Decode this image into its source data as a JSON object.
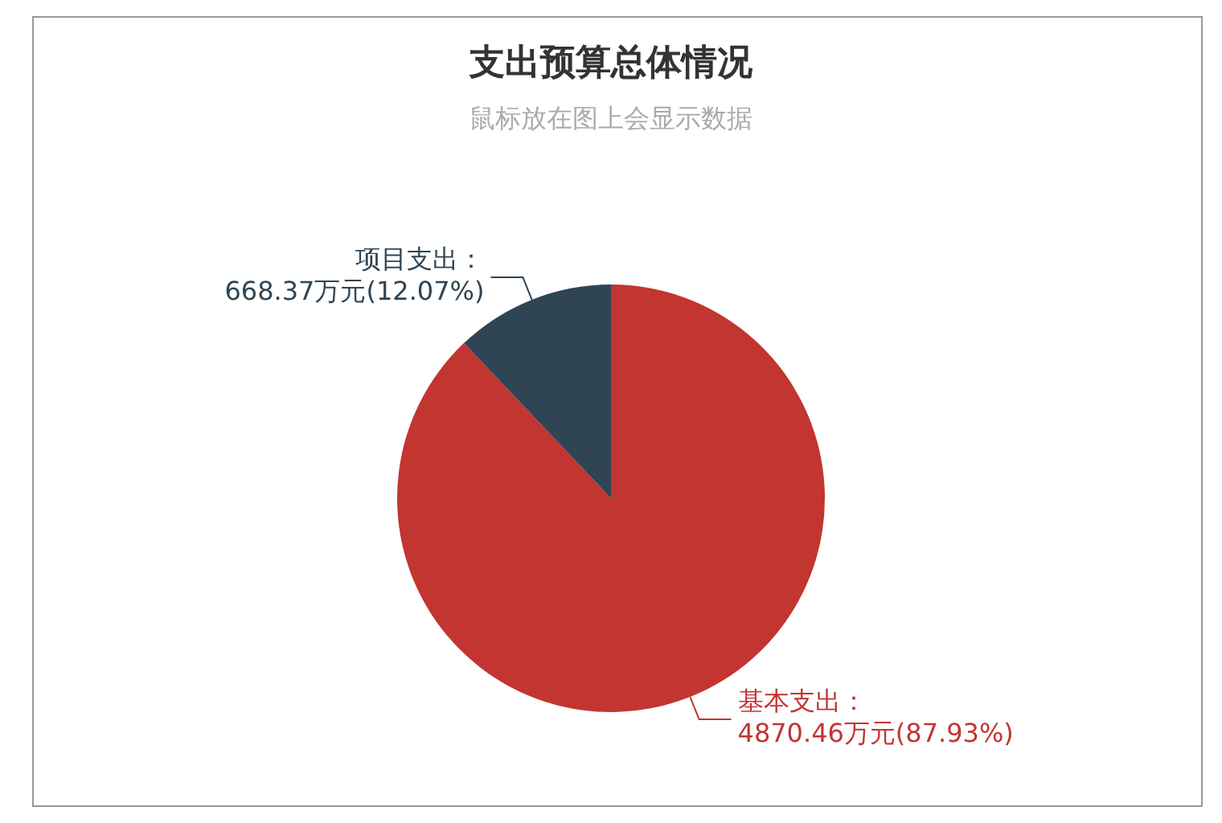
{
  "chart_data": {
    "type": "pie",
    "title": "支出预算总体情况",
    "subtitle": "鼠标放在图上会显示数据",
    "categories": [
      "基本支出",
      "项目支出"
    ],
    "values": [
      4870.46,
      668.37
    ],
    "colors": [
      "#c23531",
      "#2f4554"
    ],
    "value_labels": [
      "：\n4870.46万元(87.93%)",
      "：\n668.37万元(12.07%)"
    ],
    "legend": false
  }
}
